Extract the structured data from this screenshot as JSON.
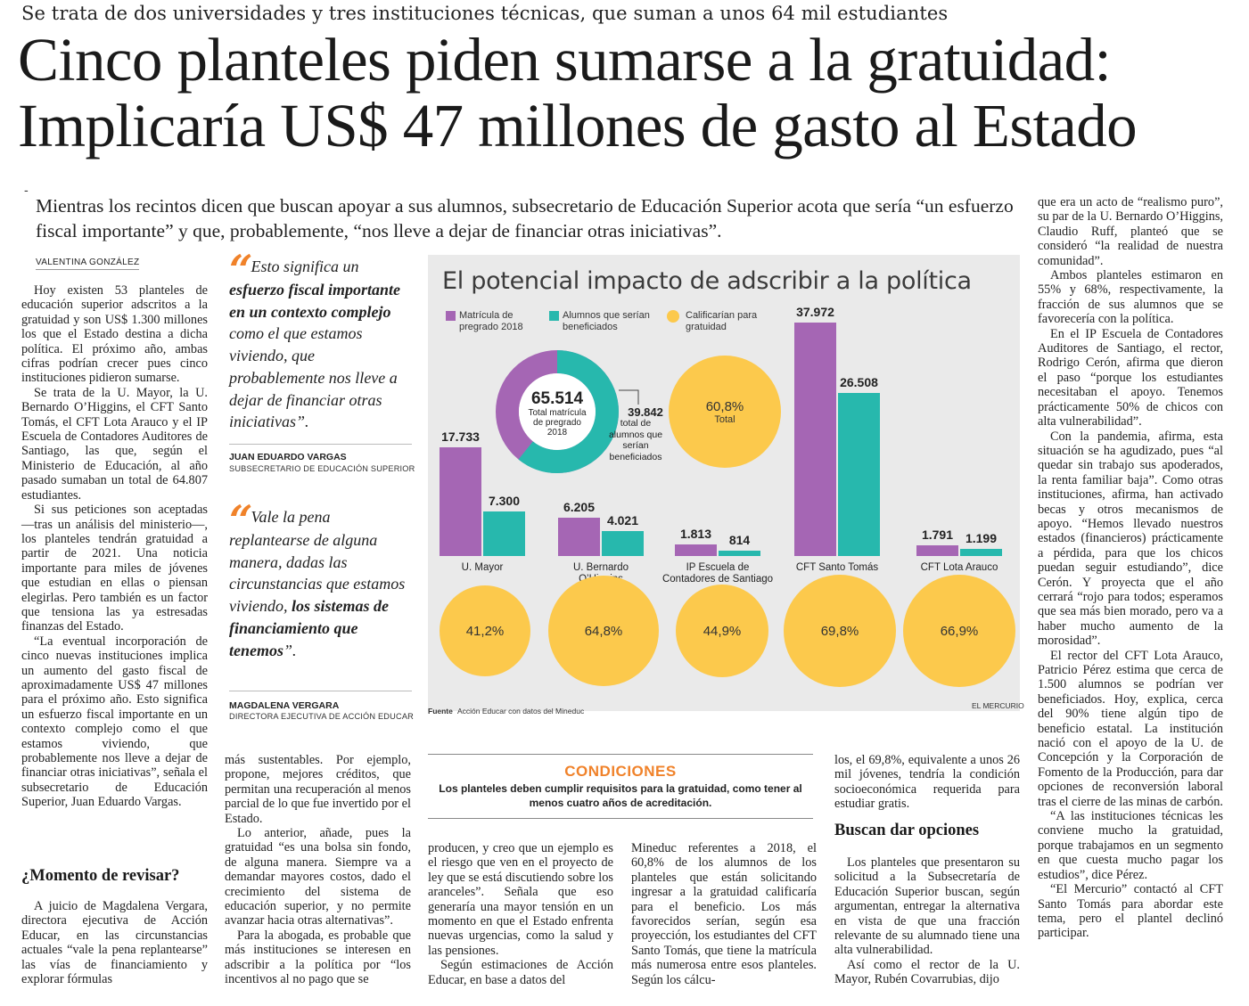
{
  "kicker": "Se trata de dos universidades y tres instituciones técnicas, que suman a unos 64 mil estudiantes",
  "headline": {
    "line1": "Cinco planteles piden sumarse a la gratuidad:",
    "line2": "Implicaría US$ 47 millones de gasto al Estado"
  },
  "deck": "Mientras los recintos dicen que buscan apoyar a sus alumnos, subsecretario de Educación Superior acota que sería “un esfuerzo fiscal importante” y que, probablemente, “nos lleve a dejar de financiar otras iniciativas”.",
  "byline": "VALENTINA GONZÁLEZ",
  "col1": {
    "p1": "Hoy existen 53 planteles de educación superior adscritos a la gratuidad y son US$ 1.300 millones los que el Estado destina a dicha política. El próximo año, ambas cifras podrían crecer pues cinco instituciones pidieron sumarse.",
    "p2": "Se trata de la U. Mayor, la U. Bernardo O’Higgins, el CFT Santo Tomás, el CFT Lota Arauco y el IP Escuela de Contadores Auditores de Santiago, las que, según el Ministerio de Educación, al año pasado sumaban un total de 64.807 estudiantes.",
    "p3": "Si sus peticiones son aceptadas —tras un análisis del ministerio—, los planteles tendrán gratuidad a partir de 2021. Una noticia importante para miles de jóvenes que estudian en ellas o piensan elegirlas. Pero también es un factor que tensiona las ya estresadas finanzas del Estado.",
    "p4": "“La eventual incorporación de cinco nuevas instituciones implica un aumento del gasto fiscal de aproximadamente US$ 47 millones para el próximo año. Esto significa un esfuerzo fiscal importante en un contexto complejo como el que estamos viviendo, que probablemente nos lleve a dejar de financiar otras iniciativas”, señala el subsecretario de Educación Superior, Juan Eduardo Vargas.",
    "subhead": "¿Momento de revisar?",
    "p5": "A juicio de Magdalena Vergara, directora ejecutiva de Acción Educar, en las circunstancias actuales “vale la pena replantearse” las vías de financiamiento y explorar fórmulas"
  },
  "quote1": {
    "pre": "Esto significa un",
    "bold": "esfuerzo fiscal importante en un contexto complejo",
    "post": "como el que estamos viviendo, que probablemente nos lleve a dejar de financiar otras iniciativas”.",
    "name": "JUAN EDUARDO VARGAS",
    "role": "SUBSECRETARIO DE EDUCACIÓN SUPERIOR"
  },
  "quote2": {
    "pre": "Vale la pena replantearse de alguna manera, dadas las circunstancias que estamos viviendo,",
    "bold": "los sistemas de financiamiento que tenemos",
    "post": "”.",
    "name": "MAGDALENA VERGARA",
    "role": "DIRECTORA EJECUTIVA DE ACCIÓN EDUCAR"
  },
  "col2": {
    "p1": "más sustentables. Por ejemplo, propone, mejores créditos, que permitan una recuperación al menos parcial de lo que fue invertido por el Estado.",
    "p2": "Lo anterior, añade, pues la gratuidad “es una bolsa sin fondo, de alguna manera. Siempre va a demandar mayores costos, dado el crecimiento del sistema de educación superior, y no permite avanzar hacia otras alternativas”.",
    "p3": "Para la abogada, es probable que más instituciones se interesen en adscribir a la política por “los incentivos al no pago que se"
  },
  "infographic": {
    "title": "El potencial impacto de adscribir a la política",
    "legend": {
      "matricula": "Matrícula de pregrado 2018",
      "beneficiados": "Alumnos que serían beneficiados",
      "califican": "Calificarían para gratuidad"
    },
    "colors": {
      "matricula": "#a566b4",
      "beneficiados": "#27b8ad",
      "califican": "#fcc94c"
    },
    "donut": {
      "total": "65.514",
      "total_label": "Total matrícula de pregrado 2018",
      "benef": "39.842",
      "benef_label": "total de alumnos que serían beneficiados",
      "fraction": 0.608
    },
    "total_circle": {
      "value": "60,8%",
      "label": "Total"
    },
    "source_label": "Fuente",
    "source": "Acción Educar con datos del Mineduc",
    "credit": "EL MERCURIO"
  },
  "chart_data": {
    "type": "bar",
    "title": "El potencial impacto de adscribir a la política",
    "categories": [
      "U. Mayor",
      "U. Bernardo O’Higgins",
      "IP Escuela de Contadores de Santiago",
      "CFT Santo Tomás",
      "CFT Lota Arauco"
    ],
    "series": [
      {
        "name": "Matrícula de pregrado 2018",
        "values": [
          17733,
          6205,
          1813,
          37972,
          1791
        ],
        "labels": [
          "17.733",
          "6.205",
          "1.813",
          "37.972",
          "1.791"
        ]
      },
      {
        "name": "Alumnos que serían beneficiados",
        "values": [
          7300,
          4021,
          814,
          26508,
          1199
        ],
        "labels": [
          "7.300",
          "4.021",
          "814",
          "26.508",
          "1.199"
        ]
      },
      {
        "name": "Calificarían para gratuidad",
        "values": [
          41.2,
          64.8,
          44.9,
          69.8,
          66.9
        ],
        "labels": [
          "41,2%",
          "64,8%",
          "44,9%",
          "69,8%",
          "66,9%"
        ]
      }
    ],
    "totals": {
      "matricula": "65.514",
      "beneficiados": "39.842",
      "califican": "60,8%"
    }
  },
  "condiciones": {
    "title": "CONDICIONES",
    "text": "Los planteles deben cumplir requisitos para la gratuidad, como tener al menos cuatro años de acreditación."
  },
  "col3": {
    "p1": "producen, y creo que un ejemplo es el riesgo que ven en el proyecto de ley que se está discutiendo sobre los aranceles”. Señala que eso generaría una mayor tensión en un momento en que el Estado enfrenta nuevas urgencias, como la salud y las pensiones.",
    "p2": "Según estimaciones de Acción Educar, en base a datos del"
  },
  "col4": {
    "p1": "Mineduc referentes a 2018, el 60,8% de los alumnos de los planteles que están solicitando ingresar a la gratuidad calificaría para el beneficio. Los más favorecidos serían, según esa proyección, los estudiantes del CFT Santo Tomás, que tiene la matrícula más numerosa entre esos planteles. Según los cálcu-"
  },
  "col5": {
    "p1": "los, el 69,8%, equivalente a unos 26 mil jóvenes, tendría la condición socioeconómica requerida para estudiar gratis.",
    "subhead": "Buscan dar opciones",
    "p2": "Los planteles que presentaron su solicitud a la Subsecretaría de Educación Superior buscan, según argumentan, entregar la alternativa en vista de que una fracción relevante de su alumnado tiene una alta vulnerabilidad.",
    "p3": "Así como el rector de la U. Mayor, Rubén Covarrubias, dijo"
  },
  "col6": {
    "p1": "que era un acto de “realismo puro”, su par de la U. Bernardo O’Higgins, Claudio Ruff, planteó que se consideró “la realidad de nuestra comunidad”.",
    "p2": "Ambos planteles estimaron en 55% y 68%, respectivamente, la fracción de sus alumnos que se favorecería con la política.",
    "p3": "En el IP Escuela de Contadores Auditores de Santiago, el rector, Rodrigo Cerón, afirma que dieron el paso “porque los estudiantes necesitaban el apoyo. Tenemos prácticamente 50% de chicos con alta vulnerabilidad”.",
    "p4": "Con la pandemia, afirma, esta situación se ha agudizado, pues “al quedar sin trabajo sus apoderados, la renta familiar baja”. Como otras instituciones, afirma, han activado becas y otros mecanismos de apoyo. “Hemos llevado nuestros estados (financieros) prácticamente a pérdida, para que los chicos puedan seguir estudiando”, dice Cerón. Y proyecta que el año cerrará “rojo para todos; esperamos que sea más bien morado, pero va a haber mucho aumento de la morosidad”.",
    "p5": "El rector del CFT Lota Arauco, Patricio Pérez estima que cerca de 1.500 alumnos se podrían ver beneficiados. Hoy, explica, cerca del 90% tiene algún tipo de beneficio estatal. La institución nació con el apoyo de la U. de Concepción y la Corporación de Fomento de la Producción, para dar opciones de reconversión laboral tras el cierre de las minas de carbón.",
    "p6": "“A las instituciones técnicas les conviene mucho la gratuidad, porque trabajamos en un segmento en que cuesta mucho pagar los estudios”, dice Pérez.",
    "p7": "“El Mercurio” contactó al CFT Santo Tomás para abordar este tema, pero el plantel declinó participar."
  }
}
